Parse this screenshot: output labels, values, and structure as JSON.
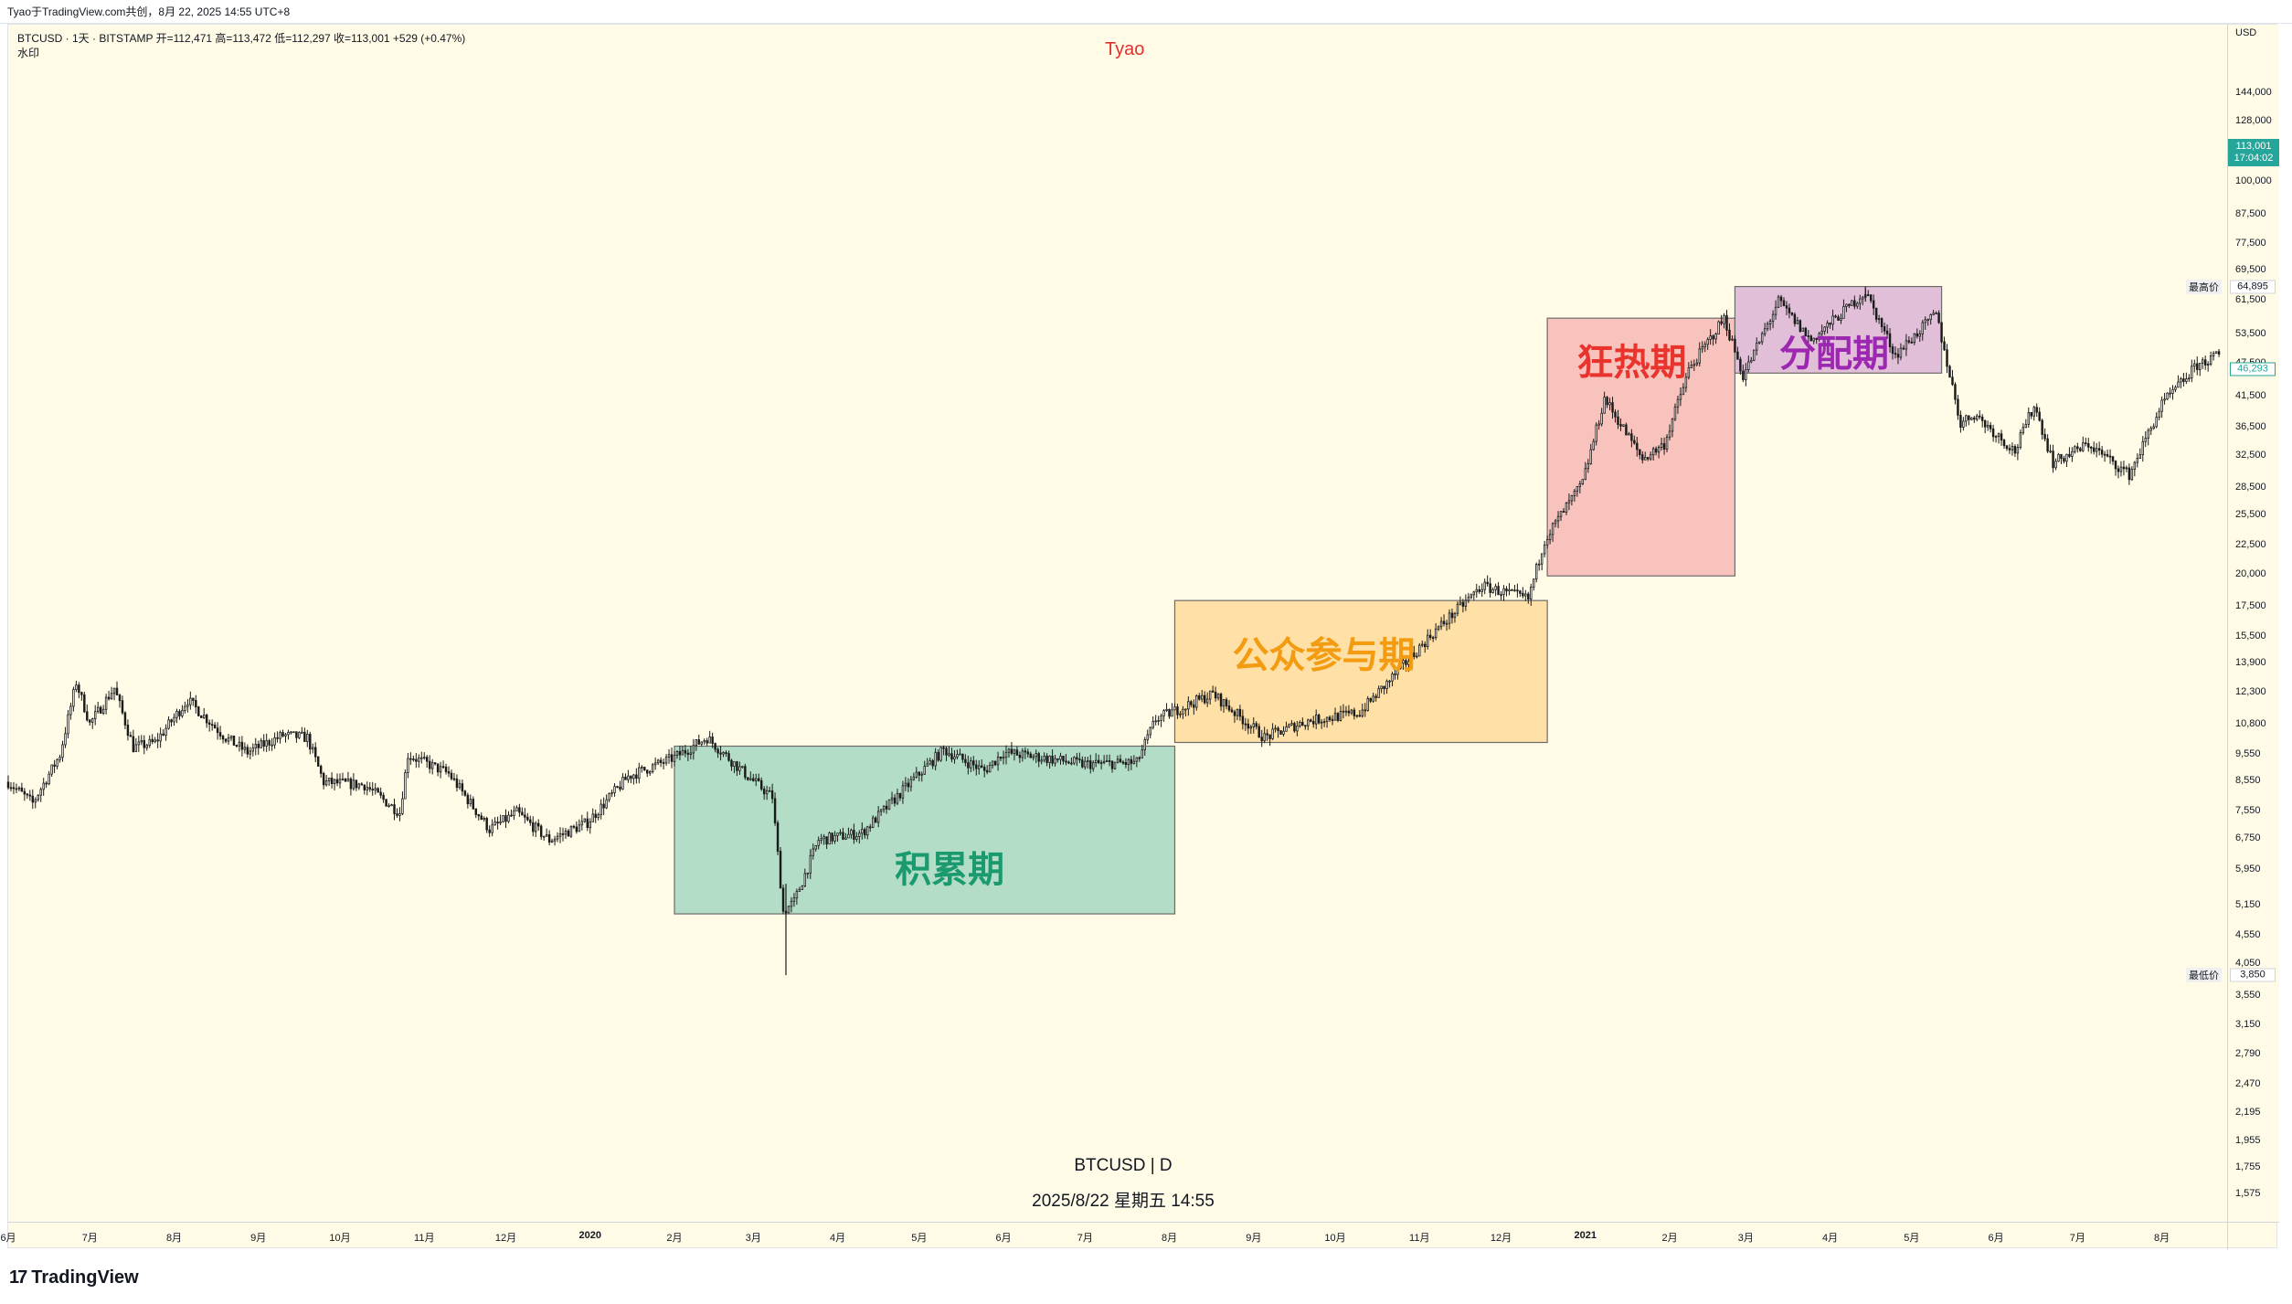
{
  "top_caption": "Tyao于TradingView.com共创，8月 22, 2025 14:55 UTC+8",
  "legend": {
    "symbol_line": "BTCUSD · 1天 · BITSTAMP  开=112,471  高=113,472  低=112,297  收=113,001  +529 (+0.47%)",
    "watermark_label": "水印"
  },
  "brand_mark": "Tyao",
  "watermark": {
    "symbol": "BTCUSD  |  D",
    "datetime": "2025/8/22 星期五 14:55"
  },
  "footer": {
    "logo_icon": "tradingview-logo-icon",
    "brand": "TradingView"
  },
  "colors": {
    "background": "#fffbe6",
    "candle": "#1a1a1a",
    "accumulation_fill": "#b4ddc7",
    "accumulation_text": "#1a9a6e",
    "public_fill": "#ffe0a6",
    "public_text": "#f39c12",
    "mania_fill": "#f7c3bc",
    "mania_text": "#e8342c",
    "distribution_fill": "#e1bfd8",
    "distribution_text": "#9c27b0",
    "last_price_bg": "#26a69a",
    "crosshair_value_border": "#26a69a"
  },
  "chart_data": {
    "type": "candlestick",
    "symbol": "BTCUSD",
    "interval": "1天",
    "exchange": "BITSTAMP",
    "y_scale": "log",
    "ylim": [
      1400,
      190000
    ],
    "price_axis": {
      "currency": "USD",
      "ticks": [
        144000,
        128000,
        100000,
        87500,
        77500,
        69500,
        61500,
        53500,
        47500,
        41500,
        36500,
        32500,
        28500,
        25500,
        22500,
        20000,
        17500,
        15500,
        13900,
        12300,
        10800,
        9550,
        8550,
        7550,
        6750,
        5950,
        5150,
        4550,
        4050,
        3550,
        3150,
        2790,
        2470,
        2195,
        1955,
        1755,
        1575
      ],
      "tick_labels": [
        "144,000",
        "128,000",
        "100,000",
        "87,500",
        "77,500",
        "69,500",
        "61,500",
        "53,500",
        "47,500",
        "41,500",
        "36,500",
        "32,500",
        "28,500",
        "25,500",
        "22,500",
        "20,000",
        "17,500",
        "15,500",
        "13,900",
        "12,300",
        "10,800",
        "9,550",
        "8,550",
        "7,550",
        "6,750",
        "5,950",
        "5,150",
        "4,550",
        "4,050",
        "3,550",
        "3,150",
        "2,790",
        "2,470",
        "2,195",
        "1,955",
        "1,755",
        "1,575"
      ],
      "last_price": {
        "value": 113001,
        "label": "113,001",
        "countdown": "17:04:02"
      },
      "highest": {
        "value": 64895,
        "label": "64,895",
        "tag": "最高价"
      },
      "lowest": {
        "value": 3850,
        "label": "3,850",
        "tag": "最低价"
      },
      "crosshair_value": {
        "value": 46293,
        "label": "46,293"
      }
    },
    "x_axis": {
      "start": "2019-06-01",
      "end": "2021-08-25",
      "labels": [
        {
          "date": "2019-06-01",
          "text": "6月"
        },
        {
          "date": "2019-07-01",
          "text": "7月"
        },
        {
          "date": "2019-08-01",
          "text": "8月"
        },
        {
          "date": "2019-09-01",
          "text": "9月"
        },
        {
          "date": "2019-10-01",
          "text": "10月"
        },
        {
          "date": "2019-11-01",
          "text": "11月"
        },
        {
          "date": "2019-12-01",
          "text": "12月"
        },
        {
          "date": "2020-01-01",
          "text": "2020"
        },
        {
          "date": "2020-02-01",
          "text": "2月"
        },
        {
          "date": "2020-03-01",
          "text": "3月"
        },
        {
          "date": "2020-04-01",
          "text": "4月"
        },
        {
          "date": "2020-05-01",
          "text": "5月"
        },
        {
          "date": "2020-06-01",
          "text": "6月"
        },
        {
          "date": "2020-07-01",
          "text": "7月"
        },
        {
          "date": "2020-08-01",
          "text": "8月"
        },
        {
          "date": "2020-09-01",
          "text": "9月"
        },
        {
          "date": "2020-10-01",
          "text": "10月"
        },
        {
          "date": "2020-11-01",
          "text": "11月"
        },
        {
          "date": "2020-12-01",
          "text": "12月"
        },
        {
          "date": "2021-01-01",
          "text": "2021"
        },
        {
          "date": "2021-02-01",
          "text": "2月"
        },
        {
          "date": "2021-03-01",
          "text": "3月"
        },
        {
          "date": "2021-04-01",
          "text": "4月"
        },
        {
          "date": "2021-05-01",
          "text": "5月"
        },
        {
          "date": "2021-06-01",
          "text": "6月"
        },
        {
          "date": "2021-07-01",
          "text": "7月"
        },
        {
          "date": "2021-08-01",
          "text": "8月"
        }
      ]
    },
    "price_path": [
      [
        "2019-06-01",
        8500
      ],
      [
        "2019-06-10",
        7800
      ],
      [
        "2019-06-20",
        9500
      ],
      [
        "2019-06-26",
        12800
      ],
      [
        "2019-07-01",
        10800
      ],
      [
        "2019-07-10",
        12500
      ],
      [
        "2019-07-17",
        9800
      ],
      [
        "2019-07-25",
        10000
      ],
      [
        "2019-08-06",
        11900
      ],
      [
        "2019-08-20",
        10200
      ],
      [
        "2019-08-28",
        9600
      ],
      [
        "2019-09-10",
        10300
      ],
      [
        "2019-09-19",
        10200
      ],
      [
        "2019-09-25",
        8500
      ],
      [
        "2019-10-10",
        8400
      ],
      [
        "2019-10-23",
        7500
      ],
      [
        "2019-10-26",
        9500
      ],
      [
        "2019-11-10",
        8800
      ],
      [
        "2019-11-25",
        7000
      ],
      [
        "2019-12-05",
        7500
      ],
      [
        "2019-12-17",
        6700
      ],
      [
        "2019-12-31",
        7200
      ],
      [
        "2020-01-15",
        8700
      ],
      [
        "2020-02-01",
        9400
      ],
      [
        "2020-02-13",
        10200
      ],
      [
        "2020-02-28",
        8700
      ],
      [
        "2020-03-08",
        8000
      ],
      [
        "2020-03-12",
        5000
      ],
      [
        "2020-03-16",
        5200
      ],
      [
        "2020-03-25",
        6700
      ],
      [
        "2020-04-10",
        6900
      ],
      [
        "2020-04-30",
        8700
      ],
      [
        "2020-05-10",
        9700
      ],
      [
        "2020-05-25",
        8900
      ],
      [
        "2020-06-01",
        9600
      ],
      [
        "2020-06-15",
        9400
      ],
      [
        "2020-06-30",
        9150
      ],
      [
        "2020-07-20",
        9200
      ],
      [
        "2020-07-27",
        11000
      ],
      [
        "2020-08-17",
        12200
      ],
      [
        "2020-09-05",
        10200
      ],
      [
        "2020-09-20",
        10900
      ],
      [
        "2020-10-10",
        11300
      ],
      [
        "2020-10-21",
        12900
      ],
      [
        "2020-11-05",
        15500
      ],
      [
        "2020-11-24",
        19000
      ],
      [
        "2020-12-11",
        18000
      ],
      [
        "2020-12-17",
        23000
      ],
      [
        "2020-12-31",
        29000
      ],
      [
        "2021-01-08",
        41000
      ],
      [
        "2021-01-22",
        32000
      ],
      [
        "2021-01-30",
        34000
      ],
      [
        "2021-02-08",
        46000
      ],
      [
        "2021-02-21",
        57000
      ],
      [
        "2021-02-28",
        45000
      ],
      [
        "2021-03-13",
        61000
      ],
      [
        "2021-03-25",
        52000
      ],
      [
        "2021-04-14",
        63500
      ],
      [
        "2021-04-25",
        49000
      ],
      [
        "2021-05-10",
        58000
      ],
      [
        "2021-05-19",
        37000
      ],
      [
        "2021-05-24",
        38500
      ],
      [
        "2021-06-08",
        33000
      ],
      [
        "2021-06-15",
        40000
      ],
      [
        "2021-06-22",
        31500
      ],
      [
        "2021-07-05",
        34000
      ],
      [
        "2021-07-20",
        30000
      ],
      [
        "2021-08-01",
        40000
      ],
      [
        "2021-08-14",
        47000
      ],
      [
        "2021-08-22",
        49000
      ]
    ],
    "phases": [
      {
        "label": "积累期",
        "start": "2020-02-01",
        "end": "2020-08-03",
        "low": 4950,
        "high": 9850,
        "fill_key": "accumulation_fill",
        "text_key": "accumulation_text"
      },
      {
        "label": "公众参与期",
        "start": "2020-08-03",
        "end": "2020-12-18",
        "low": 10000,
        "high": 17900,
        "fill_key": "public_fill",
        "text_key": "public_text"
      },
      {
        "label": "狂热期",
        "start": "2020-12-18",
        "end": "2021-02-25",
        "low": 19800,
        "high": 57000,
        "fill_key": "mania_fill",
        "text_key": "mania_text"
      },
      {
        "label": "分配期",
        "start": "2021-02-25",
        "end": "2021-05-12",
        "low": 45500,
        "high": 64895,
        "fill_key": "distribution_fill",
        "text_key": "distribution_text"
      }
    ]
  }
}
